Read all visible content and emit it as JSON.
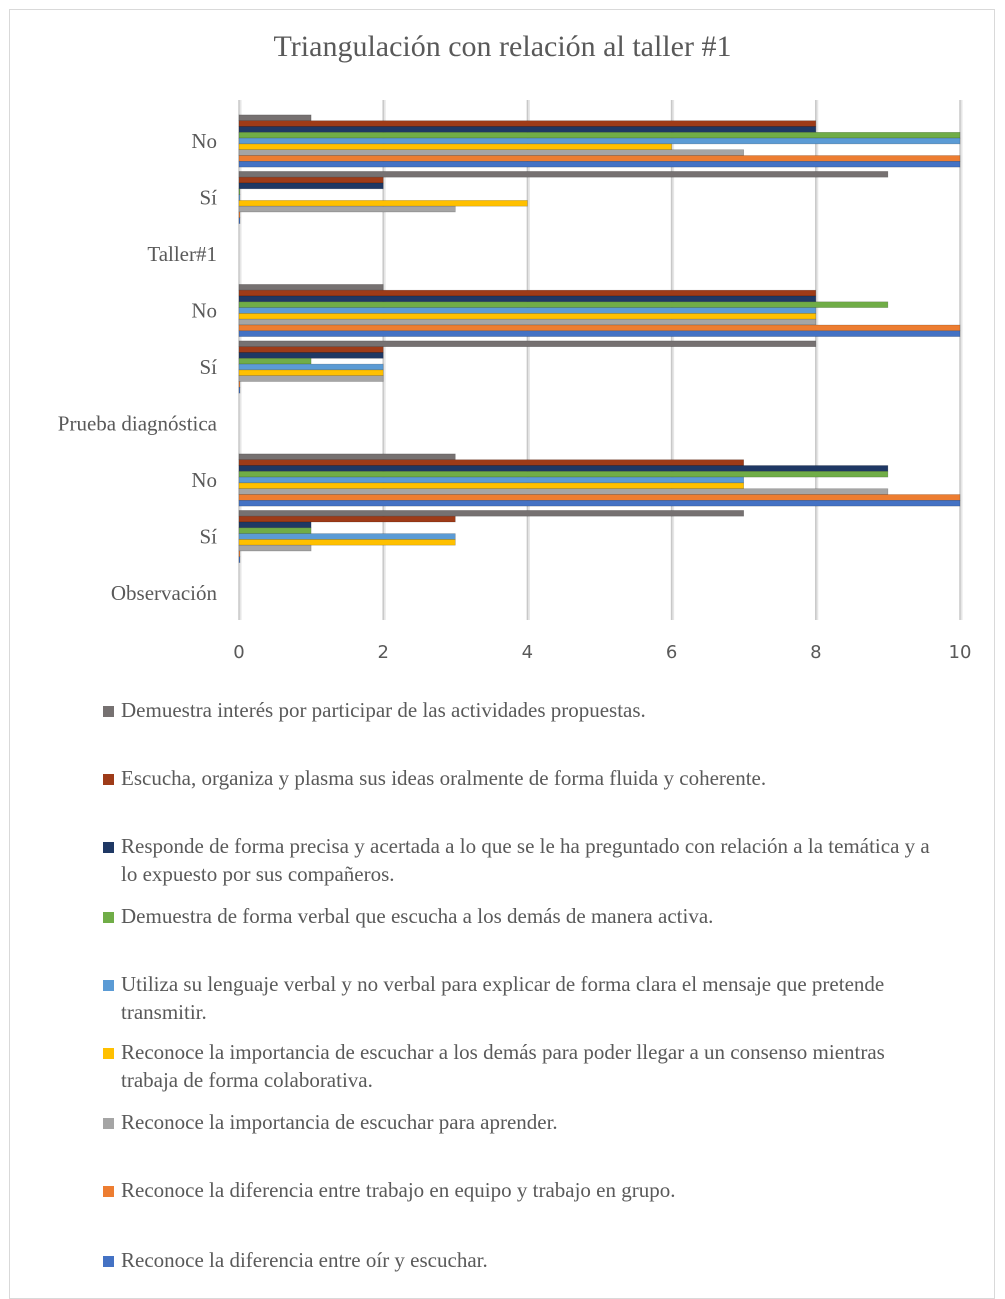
{
  "chart_data": {
    "type": "bar",
    "orientation": "horizontal",
    "title": "Triangulación con relación al taller #1",
    "xlim": [
      0,
      10
    ],
    "x_ticks": [
      "0",
      "2",
      "4",
      "6",
      "8",
      "10"
    ],
    "grid": true,
    "legend_position": "bottom",
    "categories": [
      {
        "label": "Observación",
        "group": true
      },
      {
        "label": "Sí",
        "group": false
      },
      {
        "label": "No",
        "group": false
      },
      {
        "label": "Prueba diagnóstica",
        "group": true
      },
      {
        "label": "Sí",
        "group": false
      },
      {
        "label": "No",
        "group": false
      },
      {
        "label": "Taller#1",
        "group": true
      },
      {
        "label": "Sí",
        "group": false
      },
      {
        "label": "No",
        "group": false
      }
    ],
    "series": [
      {
        "name": "Demuestra interés por participar de las actividades propuestas.",
        "color": "#767171",
        "values": [
          null,
          7,
          3,
          null,
          8,
          2,
          null,
          9,
          1
        ]
      },
      {
        "name": "Escucha, organiza y plasma sus ideas oralmente de forma fluida y coherente.",
        "color": "#9e3b18",
        "values": [
          null,
          3,
          7,
          null,
          2,
          8,
          null,
          2,
          8
        ]
      },
      {
        "name": "Responde de forma precisa y acertada a lo que se le ha preguntado con relación a la temática y a lo expuesto por sus compañeros.",
        "color": "#1f3864",
        "values": [
          null,
          1,
          9,
          null,
          2,
          8,
          null,
          2,
          8
        ]
      },
      {
        "name": "Demuestra de forma verbal que escucha a los demás de manera activa.",
        "color": "#70ad47",
        "values": [
          null,
          1,
          9,
          null,
          1,
          9,
          null,
          0,
          10
        ]
      },
      {
        "name": "Utiliza su lenguaje verbal y no verbal para explicar de forma clara el mensaje que pretende transmitir.",
        "color": "#5b9bd5",
        "values": [
          null,
          3,
          7,
          null,
          2,
          8,
          null,
          0,
          10
        ]
      },
      {
        "name": "Reconoce la importancia de escuchar a los demás para poder llegar a un consenso mientras trabaja de forma colaborativa.",
        "color": "#ffc000",
        "values": [
          null,
          3,
          7,
          null,
          2,
          8,
          null,
          4,
          6
        ]
      },
      {
        "name": "Reconoce la importancia de escuchar para aprender.",
        "color": "#a5a5a5",
        "values": [
          null,
          1,
          9,
          null,
          2,
          8,
          null,
          3,
          7
        ]
      },
      {
        "name": "Reconoce la diferencia entre trabajo en equipo y trabajo en grupo.",
        "color": "#ed7d31",
        "values": [
          null,
          0,
          10,
          null,
          0,
          10,
          null,
          0,
          10
        ]
      },
      {
        "name": "Reconoce la diferencia entre oír y escuchar.",
        "color": "#4472c4",
        "values": [
          null,
          0,
          10,
          null,
          0,
          10,
          null,
          0,
          10
        ]
      }
    ]
  }
}
